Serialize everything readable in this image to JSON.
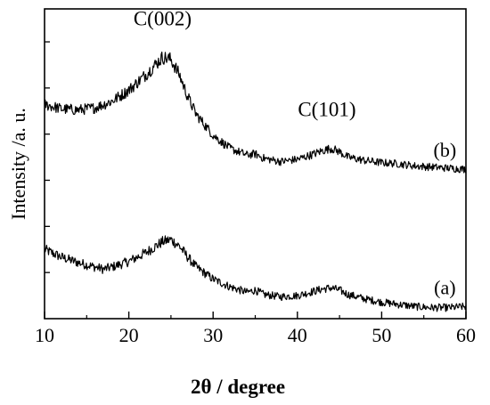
{
  "chart_data": {
    "type": "line",
    "title": "",
    "xlabel": "2θ / degree",
    "ylabel": "Intensity /a. u.",
    "xlim": [
      10,
      60
    ],
    "xticks": [
      "10",
      "20",
      "30",
      "40",
      "50",
      "60"
    ],
    "y_scale": "arbitrary units, stacked offset curves, no tick labels",
    "grid": false,
    "legend": "none",
    "line_color": "#000000",
    "series": [
      {
        "name": "(a)",
        "x": [
          10,
          12,
          14,
          16,
          17,
          18,
          20,
          22,
          23,
          24,
          25,
          26,
          27,
          28,
          30,
          32,
          34,
          35,
          36,
          38,
          40,
          42,
          43,
          44,
          45,
          46,
          48,
          50,
          52,
          54,
          56,
          58,
          60
        ],
        "y": [
          0.63,
          0.56,
          0.51,
          0.47,
          0.45,
          0.47,
          0.52,
          0.6,
          0.65,
          0.7,
          0.72,
          0.66,
          0.56,
          0.47,
          0.36,
          0.29,
          0.24,
          0.26,
          0.22,
          0.2,
          0.21,
          0.25,
          0.27,
          0.28,
          0.26,
          0.22,
          0.18,
          0.15,
          0.13,
          0.11,
          0.1,
          0.1,
          0.11
        ]
      },
      {
        "name": "(b)",
        "x": [
          10,
          12,
          14,
          16,
          18,
          20,
          22,
          23,
          24,
          25,
          26,
          27,
          28,
          30,
          32,
          34,
          35,
          36,
          38,
          40,
          42,
          43,
          44,
          45,
          46,
          48,
          50,
          52,
          54,
          56,
          58,
          60
        ],
        "y": [
          1.95,
          1.91,
          1.9,
          1.92,
          1.98,
          2.08,
          2.22,
          2.3,
          2.38,
          2.36,
          2.22,
          2.02,
          1.86,
          1.67,
          1.55,
          1.49,
          1.5,
          1.46,
          1.43,
          1.45,
          1.5,
          1.53,
          1.55,
          1.52,
          1.47,
          1.44,
          1.42,
          1.41,
          1.39,
          1.38,
          1.37,
          1.36
        ]
      }
    ],
    "annotations": [
      {
        "text": "C(002)",
        "x": 24,
        "y": 2.38
      },
      {
        "text": "C(101)",
        "x": 43.5,
        "y": 1.55
      }
    ]
  }
}
